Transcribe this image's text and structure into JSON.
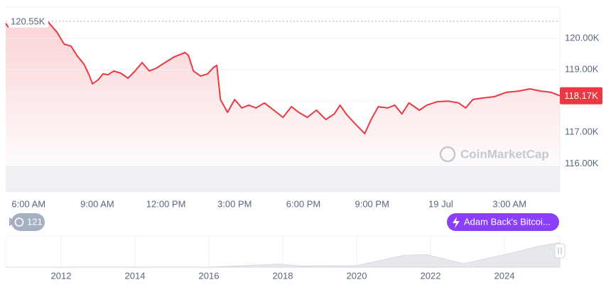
{
  "chart_data": [
    {
      "type": "line",
      "series": [
        {
          "name": "Price",
          "color": "#ea3943",
          "x": [
            5.0,
            5.12,
            5.99,
            6.86,
            7.24,
            7.55,
            7.86,
            8.11,
            8.42,
            8.64,
            8.79,
            9.04,
            9.25,
            9.47,
            9.72,
            10.03,
            10.34,
            10.65,
            10.96,
            11.27,
            11.58,
            11.96,
            12.36,
            12.83,
            12.98,
            13.2,
            13.51,
            13.82,
            14.07,
            14.22,
            14.38,
            14.69,
            15.0,
            15.31,
            15.62,
            15.93,
            16.3,
            16.71,
            17.11,
            17.48,
            17.8,
            18.17,
            18.57,
            18.98,
            19.35,
            19.6,
            19.91,
            20.28,
            20.68,
            20.96,
            21.27,
            21.68,
            21.99,
            22.3,
            22.61,
            23.07,
            23.39,
            23.85,
            24.32,
            24.78,
            25.09,
            25.4,
            25.87,
            26.34,
            26.86,
            27.42,
            27.89,
            28.35,
            28.82,
            29.2
          ],
          "values": [
            120480,
            120360,
            120500,
            120520,
            120200,
            119820,
            119750,
            119460,
            119180,
            118840,
            118550,
            118680,
            118870,
            118840,
            118960,
            118890,
            118730,
            118960,
            119230,
            118960,
            119050,
            119230,
            119410,
            119550,
            119460,
            118960,
            118800,
            118870,
            119070,
            119140,
            118050,
            117640,
            118050,
            117780,
            117870,
            117780,
            117940,
            117710,
            117480,
            117820,
            117640,
            117480,
            117710,
            117410,
            117590,
            117870,
            117550,
            117260,
            116960,
            117410,
            117820,
            117780,
            117870,
            117590,
            117940,
            117710,
            117870,
            117980,
            118000,
            117940,
            117780,
            118050,
            118100,
            118140,
            118280,
            118320,
            118390,
            118320,
            118280,
            118170
          ]
        }
      ],
      "xlim": [
        5,
        29.2
      ],
      "xticks": [
        {
          "value": 6,
          "label": "6:00 AM"
        },
        {
          "value": 9,
          "label": "9:00 AM"
        },
        {
          "value": 12,
          "label": "12:00 PM"
        },
        {
          "value": 15,
          "label": "3:00 PM"
        },
        {
          "value": 18,
          "label": "6:00 PM"
        },
        {
          "value": 21,
          "label": "9:00 PM"
        },
        {
          "value": 24,
          "label": "19 Jul"
        },
        {
          "value": 27,
          "label": "3:00 AM"
        }
      ],
      "ylim": [
        115100,
        121000
      ],
      "yticks": [
        {
          "value": 116000,
          "label": "116.00K"
        },
        {
          "value": 117000,
          "label": "117.00K"
        },
        {
          "value": 118000,
          "label": "118.00K"
        },
        {
          "value": 119000,
          "label": "119.00K"
        },
        {
          "value": 120000,
          "label": "120.00K"
        }
      ],
      "grid": true,
      "annotations": [
        {
          "kind": "high",
          "value": 120550,
          "label": "120.55K"
        },
        {
          "kind": "current",
          "value": 118170,
          "label": "118.17K"
        }
      ]
    },
    {
      "type": "area",
      "series": [
        {
          "name": "History",
          "color": "#e6e8ec",
          "x": [
            2010.5,
            2013,
            2014,
            2016,
            2017.9,
            2018.5,
            2020,
            2021.3,
            2021.9,
            2022.9,
            2024.2,
            2024.9,
            2025.5
          ],
          "values": [
            0,
            200,
            600,
            500,
            15000,
            6000,
            8000,
            58000,
            60000,
            17000,
            68000,
            100000,
            118000
          ]
        }
      ],
      "xlim": [
        2010.5,
        2025.5
      ],
      "xticks": [
        2012,
        2014,
        2016,
        2018,
        2020,
        2022,
        2024
      ],
      "ylim": [
        0,
        150000
      ],
      "grid": true
    }
  ],
  "ui": {
    "watermark": "CoinMarketCap",
    "history_count": "121",
    "news_button": "Adam Back's Bitcoi..."
  }
}
